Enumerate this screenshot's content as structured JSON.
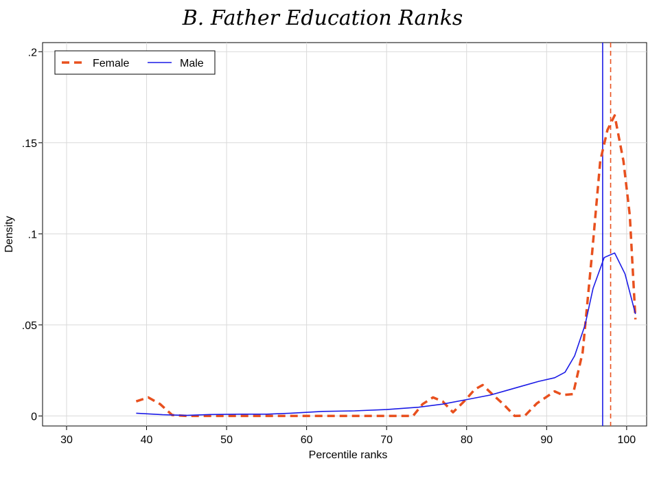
{
  "chart_data": {
    "type": "line",
    "title": "B. Father Education Ranks",
    "xlabel": "Percentile ranks",
    "ylabel": "Density",
    "xlim": [
      27,
      102.5
    ],
    "ylim": [
      -0.0055,
      0.205
    ],
    "x_ticks": [
      30,
      40,
      50,
      60,
      70,
      80,
      90,
      100
    ],
    "x_tick_labels": [
      "30",
      "40",
      "50",
      "60",
      "70",
      "80",
      "90",
      "100"
    ],
    "y_ticks": [
      0,
      0.05,
      0.1,
      0.15,
      0.2
    ],
    "y_tick_labels": [
      "0",
      ".05",
      ".1",
      ".15",
      ".2"
    ],
    "grid": true,
    "legend_position": "top-left",
    "series": [
      {
        "name": "Female",
        "color": "#E8501E",
        "style": "dashed",
        "x": [
          38.7,
          40.2,
          41.7,
          43.2,
          45.0,
          47.0,
          50.0,
          55.0,
          60.0,
          65.0,
          70.0,
          73.3,
          74.5,
          75.8,
          77.0,
          78.3,
          79.8,
          81.0,
          82.0,
          83.2,
          84.7,
          86.0,
          87.3,
          88.8,
          90.0,
          91.0,
          92.0,
          93.3,
          94.5,
          95.7,
          96.7,
          97.6,
          98.5,
          99.6,
          100.4,
          101.1
        ],
        "values": [
          0.008,
          0.0102,
          0.0065,
          0.0005,
          0.0,
          0.0,
          0.0,
          0.0,
          0.0,
          0.0,
          0.0,
          0.0,
          0.0065,
          0.0102,
          0.008,
          0.002,
          0.0085,
          0.0145,
          0.017,
          0.012,
          0.006,
          0.0,
          0.0002,
          0.007,
          0.0105,
          0.0135,
          0.0115,
          0.012,
          0.035,
          0.09,
          0.14,
          0.157,
          0.165,
          0.14,
          0.11,
          0.053
        ]
      },
      {
        "name": "Male",
        "color": "#1A1AE6",
        "style": "solid",
        "x": [
          38.7,
          42.0,
          45.0,
          48.0,
          52.0,
          55.0,
          58.0,
          62.0,
          66.0,
          70.0,
          74.0,
          77.0,
          80.0,
          83.0,
          85.0,
          87.0,
          89.0,
          91.0,
          92.3,
          93.5,
          94.8,
          95.8,
          97.2,
          98.5,
          99.8,
          101.1
        ],
        "values": [
          0.0015,
          0.0007,
          0.0003,
          0.0008,
          0.001,
          0.001,
          0.0015,
          0.0025,
          0.0028,
          0.0035,
          0.0048,
          0.0065,
          0.009,
          0.0115,
          0.014,
          0.0165,
          0.019,
          0.021,
          0.024,
          0.033,
          0.05,
          0.07,
          0.087,
          0.0895,
          0.078,
          0.056
        ]
      }
    ],
    "vlines": [
      {
        "series": "Male",
        "x": 97.0,
        "color": "#1A1AE6",
        "style": "solid"
      },
      {
        "series": "Female",
        "x": 98.0,
        "color": "#E8501E",
        "style": "dashed"
      }
    ]
  }
}
